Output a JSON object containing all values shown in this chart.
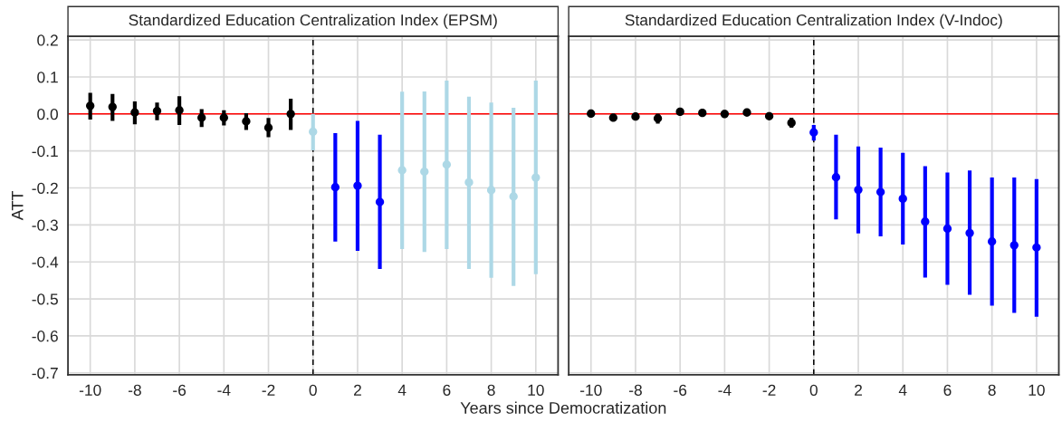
{
  "chart_data": [
    {
      "type": "scatter",
      "title": "Standardized Education Centralization Index (EPSM)",
      "xlabel": "Years since Democratization",
      "ylabel": "ATT",
      "xlim": [
        -11,
        11
      ],
      "ylim": [
        -0.705,
        0.21
      ],
      "xticks": [
        -10,
        -8,
        -6,
        -4,
        -2,
        0,
        2,
        4,
        6,
        8,
        10
      ],
      "yticks": [
        {
          "value": -0.7,
          "label": "-0.7"
        },
        {
          "value": -0.6,
          "label": "-0.6"
        },
        {
          "value": -0.5,
          "label": "-0.5"
        },
        {
          "value": -0.4,
          "label": "-0.4"
        },
        {
          "value": -0.3,
          "label": "-0.3"
        },
        {
          "value": -0.2,
          "label": "-0.2"
        },
        {
          "value": -0.1,
          "label": "-0.1"
        },
        {
          "value": 0,
          "label": "0.0"
        },
        {
          "value": 0.1,
          "label": "0.1"
        },
        {
          "value": 0.2,
          "label": "0.2"
        }
      ],
      "grid": true,
      "marker": "circle",
      "ref_lines": [
        {
          "axis": "y",
          "value": 0,
          "color": "#ff0000",
          "line_style": "solid"
        },
        {
          "axis": "x",
          "value": 0,
          "color": "#000000",
          "line_style": "dashed"
        }
      ],
      "series": [
        {
          "color": "#000000",
          "x": [
            -10,
            -9,
            -8,
            -7,
            -6,
            -5,
            -4,
            -3,
            -2,
            -1
          ],
          "values": [
            0.022,
            0.019,
            0.004,
            0.008,
            0.01,
            -0.01,
            -0.01,
            -0.02,
            -0.037,
            0.0
          ],
          "errors": [
            [
              -0.015,
              0.057
            ],
            [
              -0.019,
              0.054
            ],
            [
              -0.028,
              0.034
            ],
            [
              -0.017,
              0.031
            ],
            [
              -0.03,
              0.048
            ],
            [
              -0.035,
              0.013
            ],
            [
              -0.031,
              0.01
            ],
            [
              -0.043,
              0.002
            ],
            [
              -0.063,
              -0.011
            ],
            [
              -0.043,
              0.041
            ]
          ]
        },
        {
          "color": "#add8e6",
          "x": [
            0,
            4,
            5,
            6,
            7,
            8,
            9,
            10
          ],
          "values": [
            -0.048,
            -0.152,
            -0.156,
            -0.137,
            -0.185,
            -0.206,
            -0.223,
            -0.172
          ],
          "errors": [
            [
              -0.098,
              0.0
            ],
            [
              -0.365,
              0.06
            ],
            [
              -0.373,
              0.061
            ],
            [
              -0.365,
              0.09
            ],
            [
              -0.419,
              0.047
            ],
            [
              -0.443,
              0.031
            ],
            [
              -0.465,
              0.017
            ],
            [
              -0.433,
              0.09
            ]
          ]
        },
        {
          "color": "#0000ff",
          "x": [
            1,
            2,
            3
          ],
          "values": [
            -0.198,
            -0.194,
            -0.238
          ],
          "errors": [
            [
              -0.345,
              -0.052
            ],
            [
              -0.37,
              -0.019
            ],
            [
              -0.419,
              -0.056
            ]
          ]
        }
      ]
    },
    {
      "type": "scatter",
      "title": "Standardized Education Centralization Index (V-Indoc)",
      "xlim": [
        -11,
        11
      ],
      "ylim": [
        -0.705,
        0.21
      ],
      "xticks": [
        -10,
        -8,
        -6,
        -4,
        -2,
        0,
        2,
        4,
        6,
        8,
        10
      ],
      "yticks": [
        {
          "value": -0.7,
          "label": null
        },
        {
          "value": -0.6,
          "label": null
        },
        {
          "value": -0.5,
          "label": null
        },
        {
          "value": -0.4,
          "label": null
        },
        {
          "value": -0.3,
          "label": null
        },
        {
          "value": -0.2,
          "label": null
        },
        {
          "value": -0.1,
          "label": null
        },
        {
          "value": 0,
          "label": null
        },
        {
          "value": 0.1,
          "label": null
        },
        {
          "value": 0.2,
          "label": null
        }
      ],
      "tick_labels": "x",
      "grid": true,
      "marker": "circle",
      "ref_lines": [
        {
          "axis": "y",
          "value": 0,
          "color": "#ff0000",
          "line_style": "solid"
        },
        {
          "axis": "x",
          "value": 0,
          "color": "#000000",
          "line_style": "dashed"
        }
      ],
      "series": [
        {
          "color": "#000000",
          "x": [
            -10,
            -9,
            -8,
            -7,
            -6,
            -5,
            -4,
            -3,
            -2,
            -1
          ],
          "values": [
            0.001,
            -0.01,
            -0.007,
            -0.012,
            0.006,
            0.003,
            0.0,
            0.004,
            -0.006,
            -0.024
          ],
          "errors": [
            0.003,
            0.003,
            0.003,
            [
              -0.026,
              0.001
            ],
            [
              -0.002,
              0.013
            ],
            0.006,
            [
              -0.01,
              0.01
            ],
            [
              -0.004,
              0.01
            ],
            [
              -0.015,
              0.002
            ],
            [
              -0.037,
              -0.01
            ]
          ]
        },
        {
          "color": "#0000ff",
          "x": [
            0,
            1,
            2,
            3,
            4,
            5,
            6,
            7,
            8,
            9,
            10
          ],
          "values": [
            -0.05,
            -0.171,
            -0.205,
            -0.211,
            -0.229,
            -0.291,
            -0.31,
            -0.322,
            -0.345,
            -0.355,
            -0.361
          ],
          "errors": [
            [
              -0.072,
              -0.03
            ],
            [
              -0.285,
              -0.056
            ],
            [
              -0.323,
              -0.088
            ],
            [
              -0.331,
              -0.091
            ],
            [
              -0.353,
              -0.105
            ],
            [
              -0.442,
              -0.141
            ],
            [
              -0.462,
              -0.158
            ],
            [
              -0.489,
              -0.153
            ],
            [
              -0.518,
              -0.172
            ],
            [
              -0.538,
              -0.172
            ],
            [
              -0.548,
              -0.176
            ]
          ]
        }
      ]
    }
  ]
}
